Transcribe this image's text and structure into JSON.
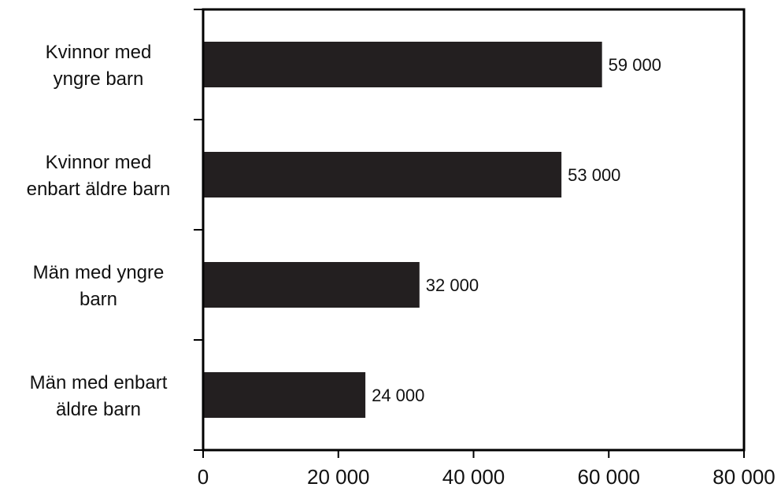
{
  "chart_data": {
    "type": "bar",
    "orientation": "horizontal",
    "categories": [
      [
        "Kvinnor med",
        "yngre barn"
      ],
      [
        "Kvinnor med",
        "enbart äldre barn"
      ],
      [
        "Män med yngre",
        "barn"
      ],
      [
        "Män med enbart",
        "äldre barn"
      ]
    ],
    "values": [
      59000,
      53000,
      32000,
      24000
    ],
    "data_labels": [
      "59 000",
      "53 000",
      "32 000",
      "24 000"
    ],
    "xlim": [
      0,
      80000
    ],
    "x_ticks": [
      0,
      20000,
      40000,
      60000,
      80000
    ],
    "x_tick_labels": [
      "0",
      "20 000",
      "40 000",
      "60 000",
      "80 000"
    ],
    "bar_color": "#231f20",
    "grid": false,
    "legend": "none"
  }
}
